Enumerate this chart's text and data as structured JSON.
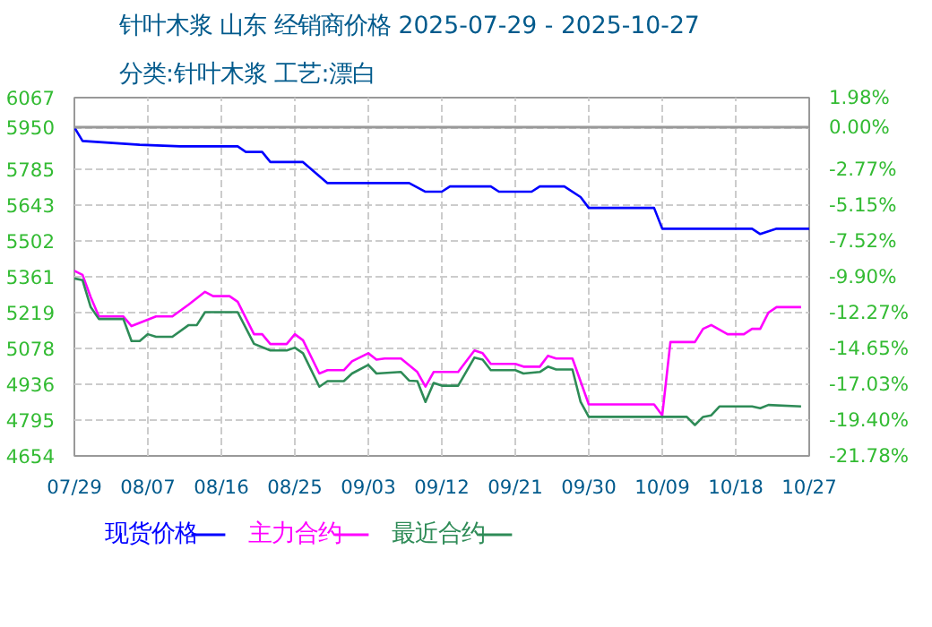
{
  "chart_data": {
    "type": "line",
    "title": "针叶木浆 山东 经销商价格 2025-07-29 - 2025-10-27",
    "subtitle": "分类:针叶木浆 工艺:漂白",
    "xlim": [
      "2025-07-29",
      "2025-10-27"
    ],
    "xticks": [
      {
        "value": "2025-07-29",
        "label": "07/29"
      },
      {
        "value": "2025-08-07",
        "label": "08/07"
      },
      {
        "value": "2025-08-16",
        "label": "08/16"
      },
      {
        "value": "2025-08-25",
        "label": "08/25"
      },
      {
        "value": "2025-09-03",
        "label": "09/03"
      },
      {
        "value": "2025-09-12",
        "label": "09/12"
      },
      {
        "value": "2025-09-21",
        "label": "09/21"
      },
      {
        "value": "2025-09-30",
        "label": "09/30"
      },
      {
        "value": "2025-10-09",
        "label": "10/09"
      },
      {
        "value": "2025-10-18",
        "label": "10/18"
      },
      {
        "value": "2025-10-27",
        "label": "10/27"
      }
    ],
    "ylim": [
      4654,
      6067
    ],
    "yticks": [
      4654,
      4795,
      4936,
      5078,
      5219,
      5361,
      5502,
      5643,
      5785,
      5950,
      6067
    ],
    "y2lim": [
      -21.78,
      1.98
    ],
    "y2ticks": [
      {
        "value": -21.78,
        "label": "-21.78%"
      },
      {
        "value": -19.4,
        "label": "-19.40%"
      },
      {
        "value": -17.03,
        "label": "-17.03%"
      },
      {
        "value": -14.65,
        "label": "-14.65%"
      },
      {
        "value": -12.27,
        "label": "-12.27%"
      },
      {
        "value": -9.9,
        "label": "-9.90%"
      },
      {
        "value": -7.52,
        "label": "-7.52%"
      },
      {
        "value": -5.15,
        "label": "-5.15%"
      },
      {
        "value": -2.77,
        "label": "-2.77%"
      },
      {
        "value": 0,
        "label": "0.00%"
      },
      {
        "value": 1.98,
        "label": "1.98%"
      }
    ],
    "ref_lines": [
      {
        "axis": "y",
        "value": 5950,
        "color": "#999999"
      }
    ],
    "grid": true,
    "legend": "bottom",
    "series": [
      {
        "name": "现货价格",
        "color": "#0000ff",
        "x": [
          "2025-07-29",
          "2025-07-30",
          "2025-08-06",
          "2025-08-11",
          "2025-08-18",
          "2025-08-19",
          "2025-08-21",
          "2025-08-22",
          "2025-08-26",
          "2025-08-29",
          "2025-09-08",
          "2025-09-10",
          "2025-09-12",
          "2025-09-13",
          "2025-09-18",
          "2025-09-19",
          "2025-09-23",
          "2025-09-24",
          "2025-09-27",
          "2025-09-29",
          "2025-09-30",
          "2025-10-08",
          "2025-10-09",
          "2025-10-20",
          "2025-10-21",
          "2025-10-23",
          "2025-10-27"
        ],
        "values": [
          5950,
          5896,
          5881,
          5875,
          5875,
          5853,
          5853,
          5813,
          5813,
          5730,
          5730,
          5696,
          5696,
          5717,
          5717,
          5696,
          5696,
          5717,
          5717,
          5675,
          5632,
          5632,
          5550,
          5550,
          5529,
          5550,
          5550
        ]
      },
      {
        "name": "主力合约",
        "color": "#ff00ff",
        "x": [
          "2025-07-29",
          "2025-07-30",
          "2025-07-31",
          "2025-08-01",
          "2025-08-04",
          "2025-08-05",
          "2025-08-08",
          "2025-08-10",
          "2025-08-12",
          "2025-08-14",
          "2025-08-15",
          "2025-08-17",
          "2025-08-18",
          "2025-08-20",
          "2025-08-21",
          "2025-08-22",
          "2025-08-24",
          "2025-08-25",
          "2025-08-26",
          "2025-08-28",
          "2025-08-29",
          "2025-08-31",
          "2025-09-01",
          "2025-09-03",
          "2025-09-04",
          "2025-09-05",
          "2025-09-07",
          "2025-09-08",
          "2025-09-09",
          "2025-09-10",
          "2025-09-11",
          "2025-09-14",
          "2025-09-16",
          "2025-09-17",
          "2025-09-18",
          "2025-09-21",
          "2025-09-22",
          "2025-09-24",
          "2025-09-25",
          "2025-09-26",
          "2025-09-28",
          "2025-09-30",
          "2025-10-08",
          "2025-10-09",
          "2025-10-10",
          "2025-10-13",
          "2025-10-14",
          "2025-10-15",
          "2025-10-17",
          "2025-10-19",
          "2025-10-20",
          "2025-10-21",
          "2025-10-22",
          "2025-10-23",
          "2025-10-26"
        ],
        "values": [
          5384,
          5368,
          5280,
          5204,
          5204,
          5166,
          5204,
          5204,
          5251,
          5301,
          5284,
          5284,
          5262,
          5134,
          5134,
          5095,
          5095,
          5134,
          5110,
          4979,
          4992,
          4992,
          5027,
          5059,
          5034,
          5038,
          5038,
          5012,
          4985,
          4927,
          4985,
          4985,
          5070,
          5059,
          5017,
          5017,
          5006,
          5006,
          5049,
          5038,
          5038,
          4857,
          4857,
          4814,
          5103,
          5103,
          5155,
          5170,
          5134,
          5134,
          5155,
          5155,
          5219,
          5241,
          5241
        ]
      },
      {
        "name": "最近合约",
        "color": "#2e8b57",
        "x": [
          "2025-07-29",
          "2025-07-30",
          "2025-07-31",
          "2025-08-01",
          "2025-08-04",
          "2025-08-05",
          "2025-08-06",
          "2025-08-07",
          "2025-08-08",
          "2025-08-10",
          "2025-08-12",
          "2025-08-13",
          "2025-08-14",
          "2025-08-18",
          "2025-08-20",
          "2025-08-22",
          "2025-08-24",
          "2025-08-25",
          "2025-08-26",
          "2025-08-28",
          "2025-08-29",
          "2025-08-31",
          "2025-09-01",
          "2025-09-03",
          "2025-09-04",
          "2025-09-07",
          "2025-09-08",
          "2025-09-09",
          "2025-09-10",
          "2025-09-11",
          "2025-09-12",
          "2025-09-14",
          "2025-09-16",
          "2025-09-17",
          "2025-09-18",
          "2025-09-21",
          "2025-09-22",
          "2025-09-24",
          "2025-09-25",
          "2025-09-26",
          "2025-09-28",
          "2025-09-29",
          "2025-09-30",
          "2025-10-12",
          "2025-10-13",
          "2025-10-14",
          "2025-10-15",
          "2025-10-16",
          "2025-10-20",
          "2025-10-21",
          "2025-10-22",
          "2025-10-26"
        ],
        "values": [
          5354,
          5347,
          5241,
          5194,
          5194,
          5107,
          5107,
          5134,
          5124,
          5124,
          5170,
          5170,
          5221,
          5221,
          5096,
          5070,
          5070,
          5081,
          5059,
          4927,
          4949,
          4949,
          4979,
          5013,
          4979,
          4985,
          4951,
          4949,
          4867,
          4942,
          4931,
          4931,
          5042,
          5034,
          4992,
          4992,
          4979,
          4985,
          5006,
          4995,
          4995,
          4867,
          4808,
          4808,
          4776,
          4808,
          4814,
          4849,
          4849,
          4842,
          4855,
          4849
        ]
      }
    ]
  }
}
